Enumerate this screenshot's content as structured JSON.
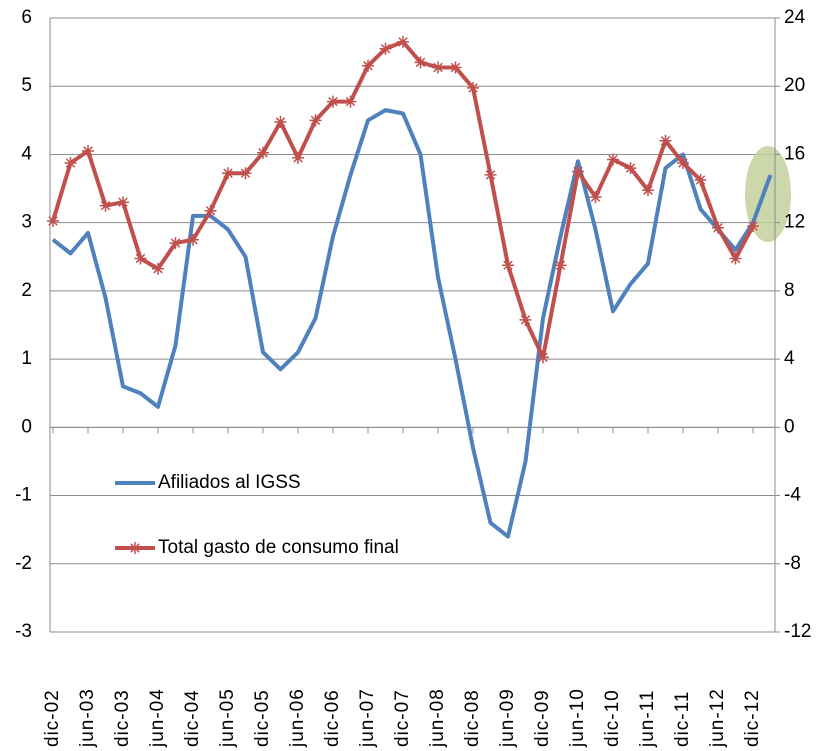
{
  "chart_data": {
    "type": "line",
    "categories": [
      "dic-02",
      null,
      "jun-03",
      null,
      "dic-03",
      null,
      "jun-04",
      null,
      "dic-04",
      null,
      "jun-05",
      null,
      "dic-05",
      null,
      "jun-06",
      null,
      "dic-06",
      null,
      "jun-07",
      null,
      "dic-07",
      null,
      "jun-08",
      null,
      "dic-08",
      null,
      "jun-09",
      null,
      "dic-09",
      null,
      "jun-10",
      null,
      "dic-10",
      null,
      "jun-11",
      null,
      "dic-11",
      null,
      "jun-12",
      null,
      "dic-12",
      null
    ],
    "series": [
      {
        "name": "Afiliados al IGSS",
        "color": "#4f81bd",
        "axis": "y",
        "values": [
          2.75,
          2.55,
          2.85,
          1.9,
          0.6,
          0.5,
          0.3,
          1.2,
          3.1,
          3.1,
          2.9,
          2.5,
          1.1,
          0.85,
          1.1,
          1.6,
          2.8,
          3.7,
          4.5,
          4.65,
          4.6,
          4.0,
          2.2,
          1.0,
          -0.3,
          -1.4,
          -1.6,
          -0.5,
          1.6,
          2.8,
          3.9,
          2.9,
          1.7,
          2.1,
          2.4,
          3.8,
          4.0,
          3.2,
          2.9,
          2.6,
          3.0,
          3.7
        ]
      },
      {
        "name": "Total gasto de consumo final",
        "color": "#c0504d",
        "axis": "y2",
        "values": [
          12.1,
          15.5,
          16.2,
          13.0,
          13.2,
          9.9,
          9.3,
          10.8,
          11.0,
          12.7,
          14.9,
          14.9,
          16.1,
          17.9,
          15.8,
          18.0,
          19.1,
          19.1,
          21.2,
          22.2,
          22.6,
          21.4,
          21.1,
          21.1,
          19.9,
          14.8,
          9.5,
          6.3,
          4.1,
          9.5,
          15.0,
          13.5,
          15.7,
          15.2,
          13.9,
          16.8,
          15.5,
          14.5,
          11.7,
          9.9,
          11.8,
          null
        ]
      }
    ],
    "ylim": [
      -3,
      6
    ],
    "yticks": [
      -3,
      -2,
      -1,
      0,
      1,
      2,
      3,
      4,
      5,
      6
    ],
    "y2lim": [
      -12,
      24
    ],
    "y2ticks": [
      -12,
      -8,
      -4,
      0,
      4,
      8,
      12,
      16,
      20,
      24
    ],
    "grid": true
  }
}
